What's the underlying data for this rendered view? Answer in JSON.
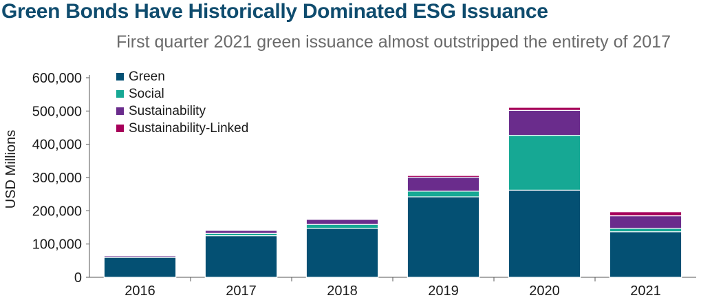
{
  "colors": {
    "title": "#0f4c6e",
    "subtitle": "#6a6a6a",
    "green": "#045073",
    "social": "#16a894",
    "sustainability": "#6a2c8c",
    "sustainability_linked": "#a7005a"
  },
  "chart_data": {
    "type": "bar",
    "stacked": true,
    "title": "Green Bonds Have Historically Dominated ESG Issuance",
    "subtitle": "First quarter 2021 green issuance almost outstripped the entirety of 2017",
    "xlabel": "",
    "ylabel": "USD Millions",
    "ylim": [
      0,
      600000
    ],
    "yticks": [
      0,
      100000,
      200000,
      300000,
      400000,
      500000,
      600000
    ],
    "ytick_labels": [
      "0",
      "100,000",
      "200,000",
      "300,000",
      "400,000",
      "500,000",
      "600,000"
    ],
    "categories": [
      "2016",
      "2017",
      "2018",
      "2019",
      "2020",
      "2021"
    ],
    "legend_position": "top-left",
    "grid": false,
    "series": [
      {
        "name": "Green",
        "color": "#045073",
        "values": [
          60000,
          125000,
          147000,
          242000,
          262000,
          137000
        ]
      },
      {
        "name": "Social",
        "color": "#16a894",
        "values": [
          1500,
          7000,
          12000,
          17000,
          165000,
          10000
        ]
      },
      {
        "name": "Sustainability",
        "color": "#6a2c8c",
        "values": [
          4000,
          9000,
          15000,
          42000,
          75000,
          38000
        ]
      },
      {
        "name": "Sustainability-Linked",
        "color": "#a7005a",
        "values": [
          500,
          1000,
          2000,
          5000,
          9000,
          12000
        ]
      }
    ]
  }
}
